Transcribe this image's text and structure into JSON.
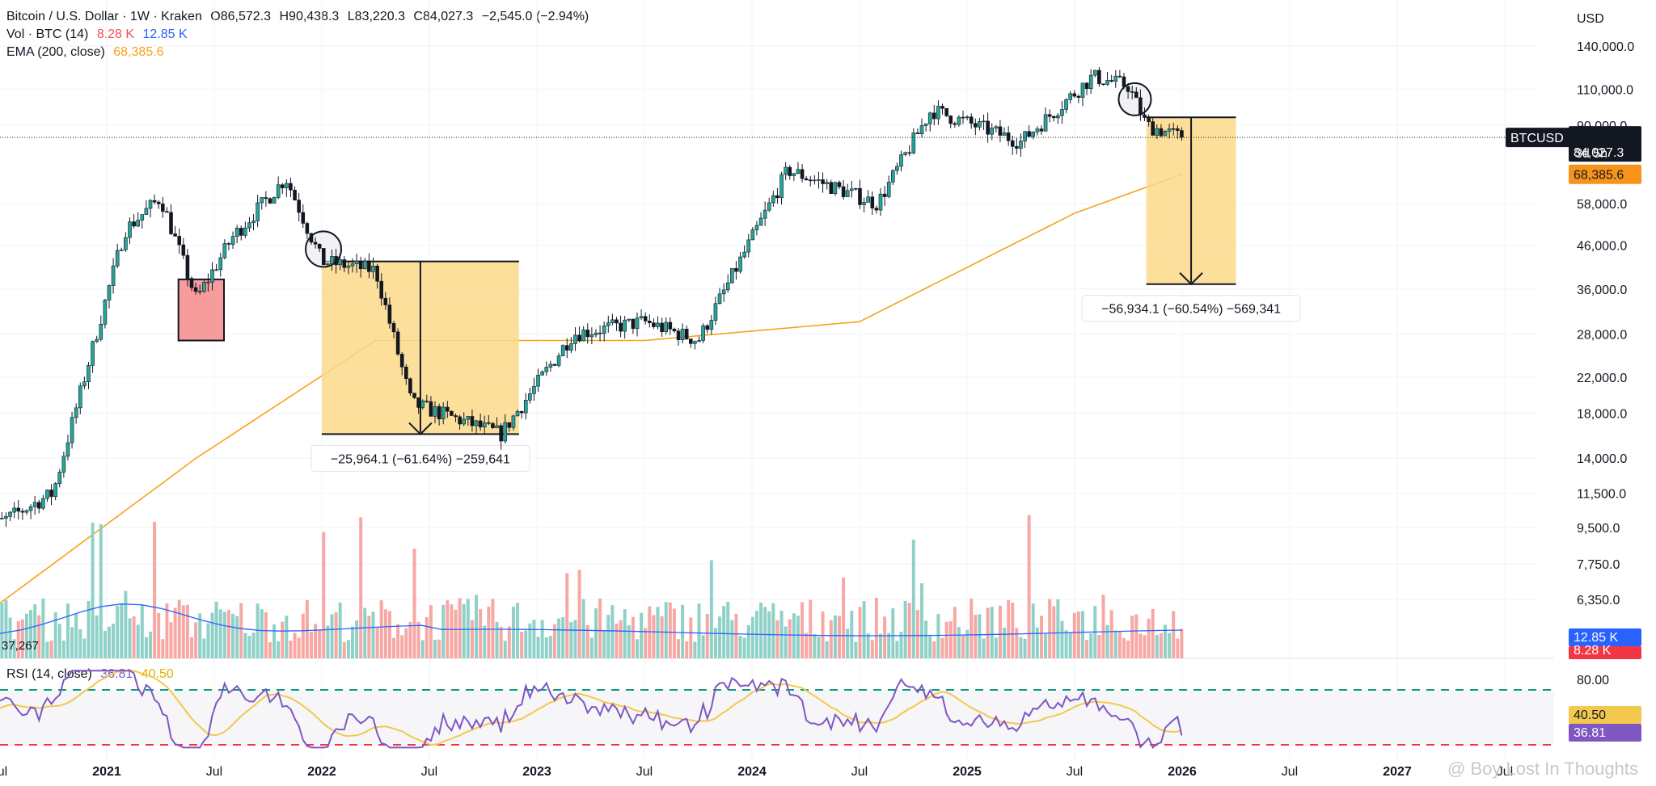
{
  "header": {
    "symbol": "Bitcoin / U.S. Dollar · 1W · Kraken",
    "open": "O86,572.3",
    "high": "H90,438.3",
    "low": "L83,220.3",
    "close": "C84,027.3",
    "change": "−2,545.0 (−2.94%)",
    "vol_label": "Vol · BTC (14)",
    "vol_value": "8.28 K",
    "vol_ma_value": "12.85 K",
    "ema_label": "EMA (200, close)",
    "ema_value": "68,385.6"
  },
  "price_axis": {
    "currency": "USD",
    "ticks": [
      "140,000.0",
      "110,000.0",
      "90,000.0",
      "58,000.0",
      "46,000.0",
      "36,000.0",
      "28,000.0",
      "22,000.0",
      "18,000.0",
      "14,000.0",
      "11,500.0",
      "9,500.0",
      "7,750.0",
      "6,350.0"
    ],
    "symbol_tag": "BTCUSD",
    "last_price_tag": "84,027.3",
    "countdown_tag": "3d 5h",
    "ema_tag": "68,385.6",
    "vol_ma_tag": "12.85 K",
    "vol_tag": "8.28 K",
    "vol_left_label": "37,267"
  },
  "rsi": {
    "label": "RSI (14, close)",
    "value": "36.81",
    "ma_value": "40.50",
    "upper_tick": "80.00",
    "tag_ma": "40.50",
    "tag_value": "36.81"
  },
  "measures": [
    {
      "label": "−25,964.1 (−61.64%) −259,641"
    },
    {
      "label": "−56,934.1 (−60.54%) −569,341"
    }
  ],
  "time_axis": [
    {
      "label": "Jul",
      "year": false
    },
    {
      "label": "2021",
      "year": true
    },
    {
      "label": "Jul",
      "year": false
    },
    {
      "label": "2022",
      "year": true
    },
    {
      "label": "Jul",
      "year": false
    },
    {
      "label": "2023",
      "year": true
    },
    {
      "label": "Jul",
      "year": false
    },
    {
      "label": "2024",
      "year": true
    },
    {
      "label": "Jul",
      "year": false
    },
    {
      "label": "2025",
      "year": true
    },
    {
      "label": "Jul",
      "year": false
    },
    {
      "label": "2026",
      "year": true
    },
    {
      "label": "Jul",
      "year": false
    },
    {
      "label": "2027",
      "year": true
    },
    {
      "label": "Jul",
      "year": false
    }
  ],
  "watermark": "@ Boy Lost In Thoughts",
  "colors": {
    "up": "#26a69a",
    "down": "#131722",
    "ema": "#f7a21b",
    "rsi": "#7e57c2",
    "rsi_ma": "#f2c94c",
    "vol_up": "#8fd1c8",
    "vol_down": "#f7a8a4",
    "vol_ma": "#2962ff",
    "measure_fill": "#fcd98a",
    "red_box": "#f48b8b"
  },
  "chart_data": {
    "type": "candlestick",
    "title": "Bitcoin / U.S. Dollar · 1W · Kraken",
    "y_scale": "log",
    "ylim": [
      8500,
      160000
    ],
    "x_start": "2020-07",
    "x_end": "2027-07",
    "key_prices": [
      {
        "date": "2020-06",
        "price": 9200
      },
      {
        "date": "2020-10",
        "price": 11500
      },
      {
        "date": "2020-12",
        "price": 24000
      },
      {
        "date": "2021-02",
        "price": 50000
      },
      {
        "date": "2021-04",
        "price": 60000
      },
      {
        "date": "2021-06",
        "price": 34000
      },
      {
        "date": "2021-08",
        "price": 48000
      },
      {
        "date": "2021-11",
        "price": 67000
      },
      {
        "date": "2022-01",
        "price": 42000
      },
      {
        "date": "2022-04",
        "price": 40000
      },
      {
        "date": "2022-06",
        "price": 19000
      },
      {
        "date": "2022-11",
        "price": 16000
      },
      {
        "date": "2023-03",
        "price": 28000
      },
      {
        "date": "2023-07",
        "price": 30000
      },
      {
        "date": "2023-10",
        "price": 27000
      },
      {
        "date": "2024-03",
        "price": 70000
      },
      {
        "date": "2024-08",
        "price": 58000
      },
      {
        "date": "2024-11",
        "price": 98000
      },
      {
        "date": "2025-04",
        "price": 82000
      },
      {
        "date": "2025-08",
        "price": 118000
      },
      {
        "date": "2025-10",
        "price": 112000
      },
      {
        "date": "2025-11",
        "price": 90000
      },
      {
        "date": "2026-01",
        "price": 84027.3
      }
    ],
    "ema_200": [
      {
        "date": "2020-07",
        "price": 6200
      },
      {
        "date": "2021-06",
        "price": 14000
      },
      {
        "date": "2022-04",
        "price": 27000
      },
      {
        "date": "2023-07",
        "price": 27000
      },
      {
        "date": "2024-07",
        "price": 30000
      },
      {
        "date": "2025-07",
        "price": 55000
      },
      {
        "date": "2026-01",
        "price": 68385.6
      }
    ],
    "measures": [
      {
        "from_date": "2022-01",
        "to_date": "2022-12",
        "from_price": 42000,
        "to_price": 16000,
        "change": -25964.1,
        "change_pct": -61.64
      },
      {
        "from_date": "2025-11",
        "to_date": "2026-04",
        "from_price": 94000,
        "to_price": 37000,
        "change": -56934.1,
        "change_pct": -60.54
      }
    ],
    "rsi_reference_lines": [
      70,
      30
    ]
  }
}
